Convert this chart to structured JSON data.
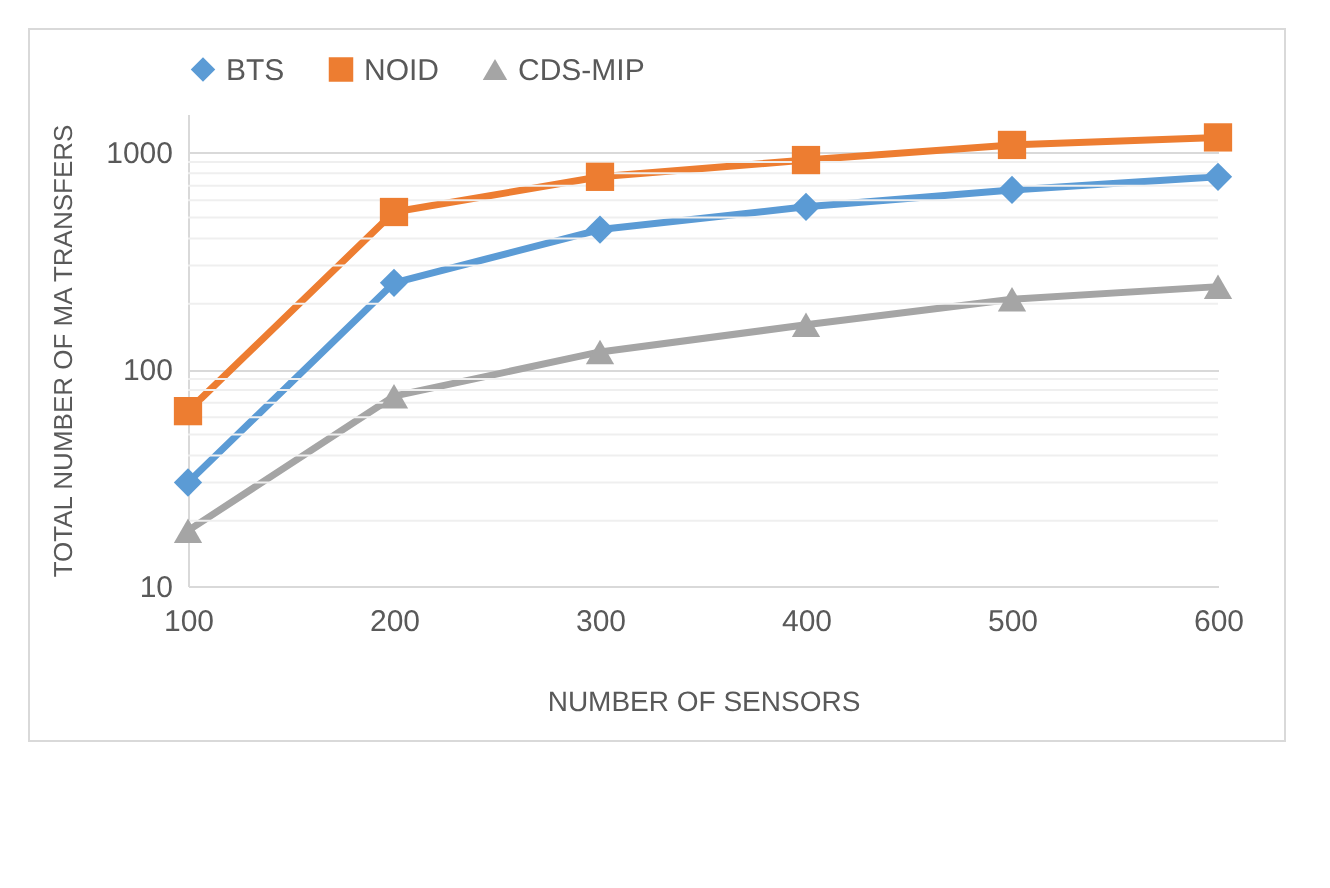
{
  "chart_data": {
    "type": "line",
    "xlabel": "NUMBER OF SENSORS",
    "ylabel": "TOTAL NUMBER OF MA TRANSFERS",
    "categories": [
      "100",
      "200",
      "300",
      "400",
      "500",
      "600"
    ],
    "series": [
      {
        "name": "BTS",
        "color": "#5b9bd5",
        "marker": "diamond",
        "values": [
          30,
          250,
          440,
          560,
          670,
          770
        ]
      },
      {
        "name": "NOID",
        "color": "#ed7d31",
        "marker": "square",
        "values": [
          64,
          530,
          770,
          920,
          1080,
          1170
        ]
      },
      {
        "name": "CDS-MIP",
        "color": "#a5a5a5",
        "marker": "triangle",
        "values": [
          18,
          75,
          120,
          160,
          210,
          240
        ]
      }
    ],
    "log": "y",
    "ylim": [
      10,
      1500
    ],
    "yticks": [
      10,
      100,
      1000
    ],
    "grid": "y",
    "legend": "top"
  }
}
